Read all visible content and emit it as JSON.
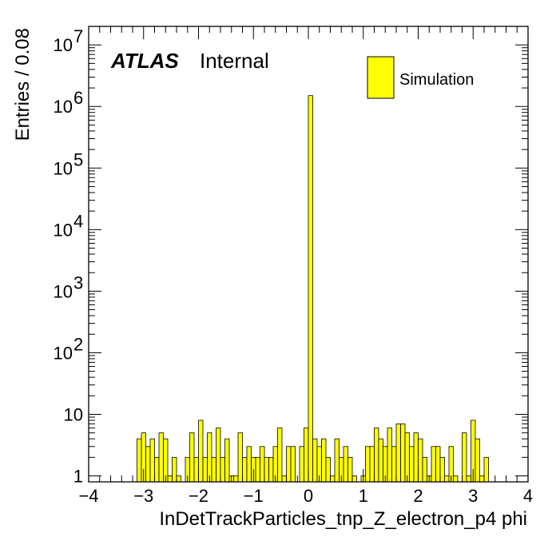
{
  "chart_data": {
    "type": "bar",
    "histogram": true,
    "xlabel": "InDetTrackParticles_tnp_Z_electron_p4 phi",
    "ylabel": "Entries / 0.08",
    "xlim": [
      -4,
      4
    ],
    "ylim": [
      0.8,
      20000000
    ],
    "log_y": true,
    "bin_width": 0.08,
    "fill_color": "#ffff00",
    "line_color": "#000000",
    "grid": false,
    "legend_position": "top-right",
    "label_bold": "ATLAS",
    "label_normal": "Internal",
    "series": [
      {
        "name": "Simulation"
      }
    ],
    "x_ticks": [
      {
        "value": -4,
        "label": "−4"
      },
      {
        "value": -3,
        "label": "−3"
      },
      {
        "value": -2,
        "label": "−2"
      },
      {
        "value": -1,
        "label": "−1"
      },
      {
        "value": 0,
        "label": "0"
      },
      {
        "value": 1,
        "label": "1"
      },
      {
        "value": 2,
        "label": "2"
      },
      {
        "value": 3,
        "label": "3"
      },
      {
        "value": 4,
        "label": "4"
      }
    ],
    "y_ticks": [
      {
        "value": 1,
        "label": "1",
        "exp": ""
      },
      {
        "value": 10,
        "label": "10",
        "exp": ""
      },
      {
        "value": 100,
        "label": "10",
        "exp": "2"
      },
      {
        "value": 1000,
        "label": "10",
        "exp": "3"
      },
      {
        "value": 10000,
        "label": "10",
        "exp": "4"
      },
      {
        "value": 100000,
        "label": "10",
        "exp": "5"
      },
      {
        "value": 1000000,
        "label": "10",
        "exp": "6"
      },
      {
        "value": 10000000,
        "label": "10",
        "exp": "7"
      }
    ],
    "bins": [
      {
        "x": -3.2,
        "y": 0
      },
      {
        "x": -3.12,
        "y": 4
      },
      {
        "x": -3.04,
        "y": 5
      },
      {
        "x": -2.96,
        "y": 3
      },
      {
        "x": -2.88,
        "y": 4
      },
      {
        "x": -2.8,
        "y": 2
      },
      {
        "x": -2.72,
        "y": 5
      },
      {
        "x": -2.64,
        "y": 4
      },
      {
        "x": -2.56,
        "y": 1
      },
      {
        "x": -2.48,
        "y": 2
      },
      {
        "x": -2.4,
        "y": 1
      },
      {
        "x": -2.32,
        "y": 0
      },
      {
        "x": -2.24,
        "y": 2
      },
      {
        "x": -2.16,
        "y": 5
      },
      {
        "x": -2.08,
        "y": 2
      },
      {
        "x": -2.0,
        "y": 8
      },
      {
        "x": -1.92,
        "y": 2
      },
      {
        "x": -1.84,
        "y": 5
      },
      {
        "x": -1.76,
        "y": 2
      },
      {
        "x": -1.68,
        "y": 6
      },
      {
        "x": -1.6,
        "y": 2
      },
      {
        "x": -1.52,
        "y": 4
      },
      {
        "x": -1.44,
        "y": 1
      },
      {
        "x": -1.36,
        "y": 1
      },
      {
        "x": -1.28,
        "y": 5
      },
      {
        "x": -1.2,
        "y": 2
      },
      {
        "x": -1.12,
        "y": 3
      },
      {
        "x": -1.04,
        "y": 2
      },
      {
        "x": -0.96,
        "y": 2
      },
      {
        "x": -0.88,
        "y": 3
      },
      {
        "x": -0.8,
        "y": 2
      },
      {
        "x": -0.72,
        "y": 2
      },
      {
        "x": -0.64,
        "y": 3
      },
      {
        "x": -0.56,
        "y": 6
      },
      {
        "x": -0.48,
        "y": 1
      },
      {
        "x": -0.4,
        "y": 3
      },
      {
        "x": -0.32,
        "y": 3
      },
      {
        "x": -0.24,
        "y": 0
      },
      {
        "x": -0.16,
        "y": 3
      },
      {
        "x": -0.08,
        "y": 6
      },
      {
        "x": 0.0,
        "y": 1500000
      },
      {
        "x": 0.08,
        "y": 4
      },
      {
        "x": 0.16,
        "y": 3
      },
      {
        "x": 0.24,
        "y": 4
      },
      {
        "x": 0.32,
        "y": 2
      },
      {
        "x": 0.4,
        "y": 1
      },
      {
        "x": 0.48,
        "y": 4
      },
      {
        "x": 0.56,
        "y": 2
      },
      {
        "x": 0.64,
        "y": 3
      },
      {
        "x": 0.72,
        "y": 2
      },
      {
        "x": 0.8,
        "y": 1
      },
      {
        "x": 0.88,
        "y": 0
      },
      {
        "x": 0.96,
        "y": 1
      },
      {
        "x": 1.04,
        "y": 3
      },
      {
        "x": 1.12,
        "y": 3
      },
      {
        "x": 1.2,
        "y": 6
      },
      {
        "x": 1.28,
        "y": 4
      },
      {
        "x": 1.36,
        "y": 3
      },
      {
        "x": 1.44,
        "y": 6
      },
      {
        "x": 1.52,
        "y": 3
      },
      {
        "x": 1.6,
        "y": 7
      },
      {
        "x": 1.68,
        "y": 7
      },
      {
        "x": 1.76,
        "y": 5
      },
      {
        "x": 1.84,
        "y": 3
      },
      {
        "x": 1.92,
        "y": 5
      },
      {
        "x": 2.0,
        "y": 4
      },
      {
        "x": 2.08,
        "y": 2
      },
      {
        "x": 2.16,
        "y": 1
      },
      {
        "x": 2.24,
        "y": 3
      },
      {
        "x": 2.32,
        "y": 3
      },
      {
        "x": 2.4,
        "y": 2
      },
      {
        "x": 2.48,
        "y": 1
      },
      {
        "x": 2.56,
        "y": 3
      },
      {
        "x": 2.64,
        "y": 1
      },
      {
        "x": 2.72,
        "y": 0
      },
      {
        "x": 2.8,
        "y": 5
      },
      {
        "x": 2.88,
        "y": 1
      },
      {
        "x": 2.96,
        "y": 8
      },
      {
        "x": 3.04,
        "y": 4
      },
      {
        "x": 3.12,
        "y": 1
      },
      {
        "x": 3.2,
        "y": 2
      }
    ]
  }
}
